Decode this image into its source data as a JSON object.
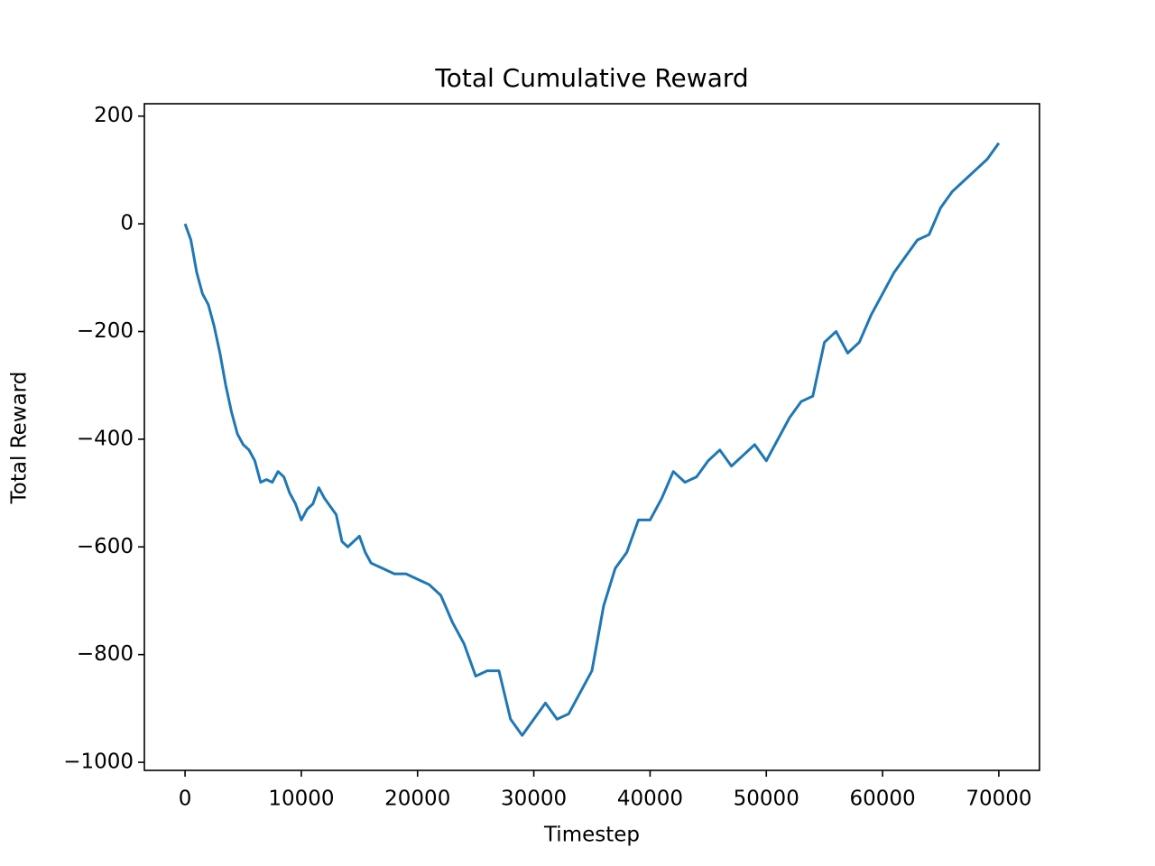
{
  "chart_data": {
    "type": "line",
    "title": "Total Cumulative Reward",
    "x_label": "Timestep",
    "y_label": "Total Reward",
    "x": [
      0,
      500,
      1000,
      1500,
      2000,
      2500,
      3000,
      3500,
      4000,
      4500,
      5000,
      5500,
      6000,
      6500,
      7000,
      7500,
      8000,
      8500,
      9000,
      9500,
      10000,
      10500,
      11000,
      11500,
      12000,
      13000,
      13500,
      14000,
      15000,
      15500,
      16000,
      17000,
      18000,
      19000,
      20000,
      21000,
      22000,
      23000,
      24000,
      25000,
      26000,
      27000,
      28000,
      29000,
      30000,
      31000,
      32000,
      33000,
      34000,
      35000,
      36000,
      37000,
      38000,
      39000,
      40000,
      41000,
      42000,
      43000,
      44000,
      45000,
      46000,
      47000,
      48000,
      49000,
      50000,
      51000,
      52000,
      53000,
      54000,
      55000,
      56000,
      57000,
      58000,
      59000,
      60000,
      61000,
      62000,
      63000,
      64000,
      65000,
      66000,
      67000,
      68000,
      69000,
      70000
    ],
    "series": [
      {
        "color": "#1f77b4",
        "values": [
          0,
          -30,
          -90,
          -130,
          -150,
          -190,
          -240,
          -300,
          -350,
          -390,
          -410,
          -420,
          -440,
          -480,
          -475,
          -480,
          -460,
          -470,
          -500,
          -520,
          -550,
          -530,
          -520,
          -490,
          -510,
          -540,
          -590,
          -600,
          -580,
          -610,
          -630,
          -640,
          -650,
          -650,
          -660,
          -670,
          -690,
          -740,
          -780,
          -840,
          -830,
          -830,
          -920,
          -950,
          -920,
          -890,
          -920,
          -910,
          -870,
          -830,
          -710,
          -640,
          -610,
          -550,
          -550,
          -510,
          -460,
          -480,
          -470,
          -440,
          -420,
          -450,
          -430,
          -410,
          -440,
          -400,
          -360,
          -330,
          -320,
          -220,
          -200,
          -240,
          -220,
          -170,
          -130,
          -90,
          -60,
          -30,
          -20,
          30,
          60,
          80,
          100,
          120,
          150
        ]
      }
    ],
    "xlim": [
      -3500,
      73500
    ],
    "xticks": [
      0,
      10000,
      20000,
      30000,
      40000,
      50000,
      60000,
      70000
    ],
    "ylim": [
      -1015,
      223
    ],
    "yticks": [
      {
        "value": -1000,
        "label": "−1000"
      },
      {
        "value": -800,
        "label": "−800"
      },
      {
        "value": -600,
        "label": "−600"
      },
      {
        "value": -400,
        "label": "−400"
      },
      {
        "value": -200,
        "label": "−200"
      },
      0,
      200
    ]
  }
}
